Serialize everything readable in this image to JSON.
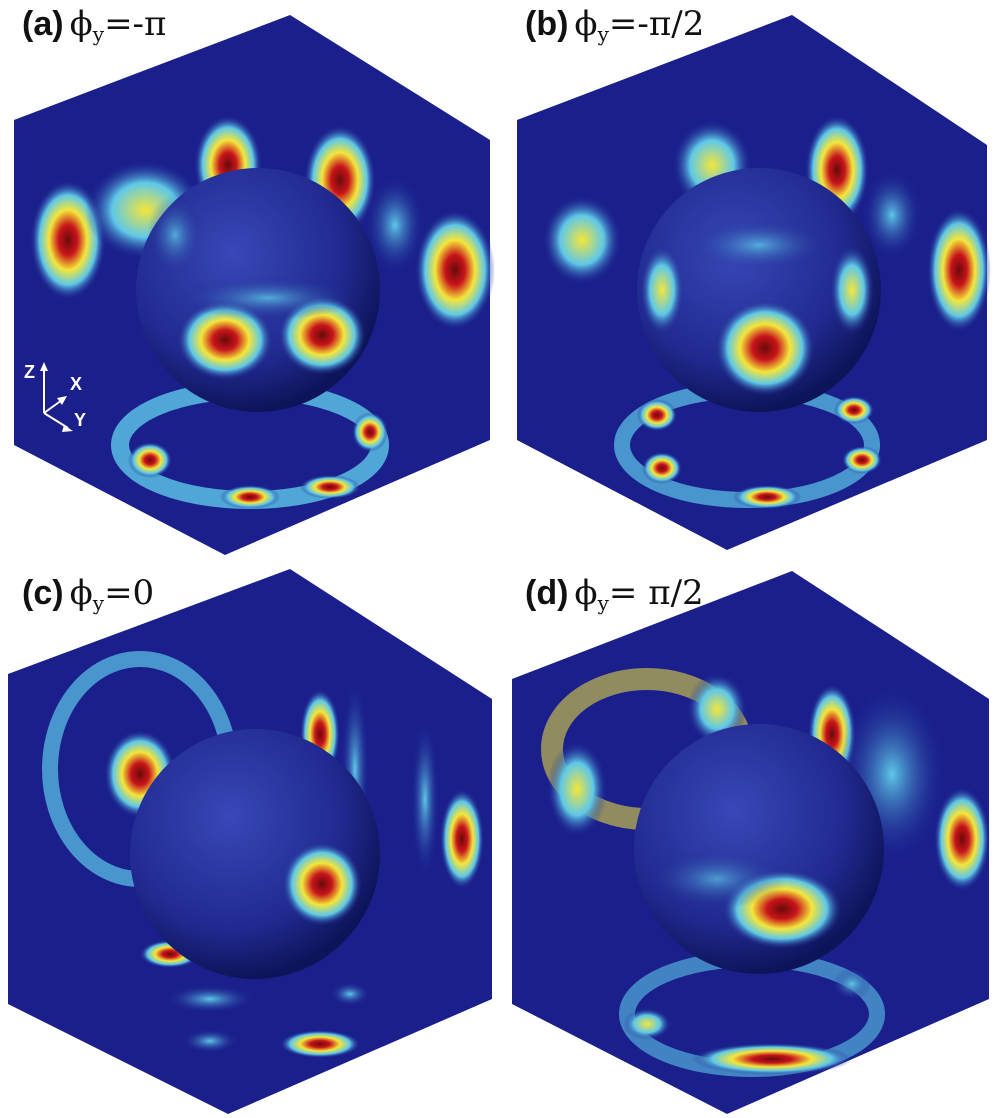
{
  "panels": [
    {
      "id": "a",
      "tag": "(a)",
      "phi": "ϕ",
      "sub": "y",
      "eq": "=-π"
    },
    {
      "id": "b",
      "tag": "(b)",
      "phi": "ϕ",
      "sub": "y",
      "eq": "=-π/2"
    },
    {
      "id": "c",
      "tag": "(c)",
      "phi": "ϕ",
      "sub": "y",
      "eq": "=0"
    },
    {
      "id": "d",
      "tag": "(d)",
      "phi": "ϕ",
      "sub": "y",
      "eq": "= π/2"
    }
  ],
  "axes": {
    "z": "Z",
    "x": "X",
    "y": "Y"
  },
  "colors": {
    "background": "#1a1f8c",
    "low": "#1e2a9a",
    "cyan": "#5ec8e8",
    "yellow": "#f4e63a",
    "red": "#c8141a",
    "darkred": "#6a0a0a"
  }
}
